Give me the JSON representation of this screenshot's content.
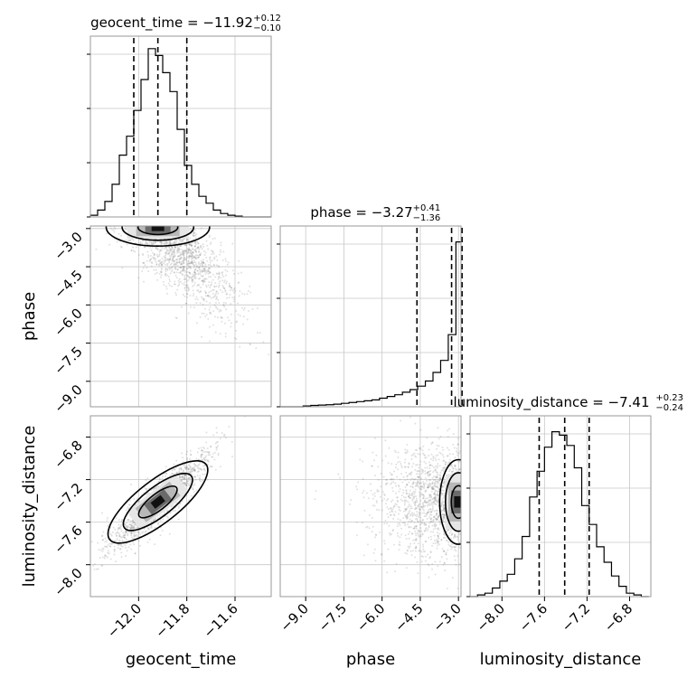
{
  "chart_data": {
    "type": "corner",
    "parameters": [
      {
        "name": "geocent_time",
        "axis_label": "geocent_time",
        "title": {
          "main": "geocent_time = −11.92",
          "sup": "+0.12",
          "sub": "−0.10"
        },
        "range": [
          -12.2,
          -11.45
        ],
        "ticks": [
          -12.0,
          -11.8,
          -11.6
        ],
        "tick_labels": [
          "−12.0",
          "−11.8",
          "−11.6"
        ],
        "median": -11.92,
        "quantiles": [
          -12.02,
          -11.92,
          -11.8
        ],
        "hist_edges": [
          -12.2,
          -12.17,
          -12.14,
          -12.11,
          -12.08,
          -12.05,
          -12.02,
          -11.99,
          -11.96,
          -11.93,
          -11.9,
          -11.87,
          -11.84,
          -11.81,
          -11.78,
          -11.75,
          -11.72,
          -11.69,
          -11.66,
          -11.63,
          -11.6,
          -11.57,
          -11.54,
          -11.51,
          -11.48,
          -11.45
        ],
        "hist_values": [
          0.01,
          0.04,
          0.09,
          0.19,
          0.36,
          0.47,
          0.62,
          0.8,
          0.98,
          0.94,
          0.84,
          0.73,
          0.51,
          0.3,
          0.19,
          0.12,
          0.08,
          0.04,
          0.02,
          0.01,
          0.005,
          0,
          0,
          0,
          0
        ],
        "hist_max": 1.0
      },
      {
        "name": "phase",
        "axis_label": "phase",
        "title": {
          "main": "phase = −3.27",
          "sup": "+0.41",
          "sub": "−1.36"
        },
        "range": [
          -10.0,
          -2.9
        ],
        "ticks": [
          -9.0,
          -7.5,
          -6.0,
          -4.5,
          -3.0
        ],
        "tick_labels": [
          "−9.0",
          "−7.5",
          "−6.0",
          "−4.5",
          "−3.0"
        ],
        "median": -3.27,
        "quantiles": [
          -4.63,
          -3.27,
          -2.86
        ],
        "hist_edges": [
          -10.0,
          -9.7,
          -9.4,
          -9.1,
          -8.8,
          -8.5,
          -8.2,
          -7.9,
          -7.6,
          -7.3,
          -7.0,
          -6.7,
          -6.4,
          -6.1,
          -5.8,
          -5.5,
          -5.2,
          -4.9,
          -4.6,
          -4.3,
          -4.0,
          -3.7,
          -3.4,
          -3.1,
          -2.9
        ],
        "hist_values": [
          0,
          0,
          0,
          0.005,
          0.008,
          0.01,
          0.012,
          0.015,
          0.02,
          0.025,
          0.03,
          0.035,
          0.04,
          0.05,
          0.06,
          0.07,
          0.085,
          0.1,
          0.12,
          0.15,
          0.2,
          0.27,
          0.42,
          0.96
        ],
        "hist_max": 1.0
      },
      {
        "name": "luminosity_distance",
        "axis_label": "luminosity_distance",
        "title": {
          "main": "luminosity_distance = −7.41",
          "sup": "+0.23",
          "sub": "−0.24"
        },
        "range": [
          -8.3,
          -6.6
        ],
        "ticks": [
          -8.0,
          -7.6,
          -7.2,
          -6.8
        ],
        "tick_labels": [
          "−8.0",
          "−7.6",
          "−7.2",
          "−6.8"
        ],
        "median": -7.41,
        "quantiles": [
          -7.65,
          -7.41,
          -7.18
        ],
        "hist_edges": [
          -8.3,
          -8.23,
          -8.16,
          -8.09,
          -8.02,
          -7.95,
          -7.88,
          -7.81,
          -7.74,
          -7.67,
          -7.6,
          -7.53,
          -7.46,
          -7.39,
          -7.32,
          -7.25,
          -7.18,
          -7.11,
          -7.04,
          -6.97,
          -6.9,
          -6.83,
          -6.76,
          -6.69,
          -6.62
        ],
        "hist_values": [
          0,
          0.01,
          0.02,
          0.05,
          0.09,
          0.13,
          0.22,
          0.35,
          0.58,
          0.73,
          0.87,
          0.96,
          0.94,
          0.88,
          0.75,
          0.53,
          0.42,
          0.29,
          0.2,
          0.12,
          0.06,
          0.02,
          0.01,
          0
        ],
        "hist_max": 1.0
      }
    ],
    "contour_pairs": [
      {
        "x": "geocent_time",
        "y": "phase"
      },
      {
        "x": "geocent_time",
        "y": "luminosity_distance"
      },
      {
        "x": "phase",
        "y": "luminosity_distance"
      }
    ],
    "y_ticks": {
      "phase": {
        "ticks": [
          -3.0,
          -4.5,
          -6.0,
          -7.5,
          -9.0
        ],
        "labels": [
          "−3.0",
          "−4.5",
          "−6.0",
          "−7.5",
          "−9.0"
        ]
      },
      "luminosity_distance": {
        "ticks": [
          -6.8,
          -7.2,
          -7.6,
          -8.0
        ],
        "labels": [
          "−6.8",
          "−7.2",
          "−7.6",
          "−8.0"
        ]
      }
    },
    "grid": true,
    "colors": {
      "contour": "#000000",
      "hist": "#000000",
      "points": "#666666",
      "density": "#000000"
    }
  }
}
